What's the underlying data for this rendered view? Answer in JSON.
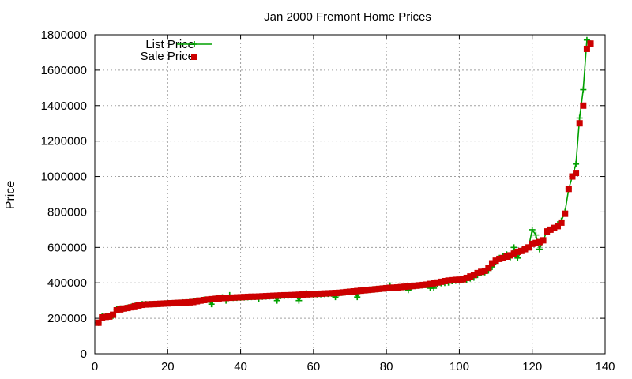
{
  "chart_data": {
    "type": "line",
    "title": "Jan 2000 Fremont Home Prices",
    "xlabel": "",
    "ylabel": "Price",
    "xlim": [
      0,
      140
    ],
    "ylim": [
      0,
      1800000
    ],
    "x_ticks": [
      0,
      20,
      40,
      60,
      80,
      100,
      120,
      140
    ],
    "y_ticks": [
      0,
      200000,
      400000,
      600000,
      800000,
      1000000,
      1200000,
      1400000,
      1600000,
      1800000
    ],
    "grid": true,
    "legend_position": "top-left",
    "series": [
      {
        "name": "List Price",
        "style": "lines with plus markers",
        "color": "#00a000",
        "x": [
          1,
          2,
          3,
          4,
          5,
          6,
          7,
          8,
          9,
          10,
          11,
          12,
          13,
          14,
          15,
          16,
          17,
          18,
          19,
          20,
          21,
          22,
          23,
          24,
          25,
          26,
          27,
          28,
          29,
          30,
          31,
          32,
          33,
          34,
          35,
          36,
          37,
          38,
          39,
          40,
          41,
          42,
          43,
          44,
          45,
          46,
          47,
          48,
          49,
          50,
          51,
          52,
          53,
          54,
          55,
          56,
          57,
          58,
          59,
          60,
          61,
          62,
          63,
          64,
          65,
          66,
          67,
          68,
          69,
          70,
          71,
          72,
          73,
          74,
          75,
          76,
          77,
          78,
          79,
          80,
          81,
          82,
          83,
          84,
          85,
          86,
          87,
          88,
          89,
          90,
          91,
          92,
          93,
          94,
          95,
          96,
          97,
          98,
          99,
          100,
          101,
          102,
          103,
          104,
          105,
          106,
          107,
          108,
          109,
          110,
          111,
          112,
          113,
          114,
          115,
          116,
          117,
          118,
          119,
          120,
          121,
          122,
          123,
          124,
          125,
          126,
          127,
          128,
          129,
          130,
          131,
          132,
          133,
          134,
          135,
          136
        ],
        "values": [
          175000,
          210000,
          210000,
          210000,
          215000,
          250000,
          255000,
          255000,
          260000,
          265000,
          270000,
          275000,
          280000,
          280000,
          280000,
          280000,
          280000,
          282000,
          284000,
          285000,
          285000,
          287000,
          288000,
          290000,
          290000,
          292000,
          294000,
          300000,
          300000,
          305000,
          305000,
          280000,
          310000,
          315000,
          318000,
          300000,
          330000,
          315000,
          316000,
          317000,
          318000,
          319000,
          320000,
          321000,
          310000,
          322000,
          323000,
          324000,
          325000,
          300000,
          326000,
          327000,
          328000,
          329000,
          330000,
          300000,
          331000,
          340000,
          333000,
          334000,
          335000,
          336000,
          337000,
          338000,
          339000,
          320000,
          342000,
          345000,
          348000,
          350000,
          352000,
          320000,
          356000,
          358000,
          360000,
          362000,
          364000,
          366000,
          368000,
          370000,
          385000,
          372000,
          374000,
          376000,
          378000,
          360000,
          380000,
          382000,
          384000,
          386000,
          388000,
          370000,
          370000,
          395000,
          398000,
          400000,
          402000,
          410000,
          412000,
          414000,
          415000,
          418000,
          425000,
          430000,
          445000,
          455000,
          460000,
          470000,
          490000,
          520000,
          540000,
          550000,
          560000,
          545000,
          600000,
          540000,
          580000,
          590000,
          600000,
          700000,
          670000,
          590000,
          640000,
          690000,
          700000,
          710000,
          730000,
          750000,
          800000,
          930000,
          1000000,
          1070000,
          1330000,
          1490000,
          1770000,
          1750000
        ]
      },
      {
        "name": "Sale Price",
        "style": "square markers",
        "color": "#cc0000",
        "x": [
          1,
          2,
          3,
          4,
          5,
          6,
          7,
          8,
          9,
          10,
          11,
          12,
          13,
          14,
          15,
          16,
          17,
          18,
          19,
          20,
          21,
          22,
          23,
          24,
          25,
          26,
          27,
          28,
          29,
          30,
          31,
          32,
          33,
          34,
          35,
          36,
          37,
          38,
          39,
          40,
          41,
          42,
          43,
          44,
          45,
          46,
          47,
          48,
          49,
          50,
          51,
          52,
          53,
          54,
          55,
          56,
          57,
          58,
          59,
          60,
          61,
          62,
          63,
          64,
          65,
          66,
          67,
          68,
          69,
          70,
          71,
          72,
          73,
          74,
          75,
          76,
          77,
          78,
          79,
          80,
          81,
          82,
          83,
          84,
          85,
          86,
          87,
          88,
          89,
          90,
          91,
          92,
          93,
          94,
          95,
          96,
          97,
          98,
          99,
          100,
          101,
          102,
          103,
          104,
          105,
          106,
          107,
          108,
          109,
          110,
          111,
          112,
          113,
          114,
          115,
          116,
          117,
          118,
          119,
          120,
          121,
          122,
          123,
          124,
          125,
          126,
          127,
          128,
          129,
          130,
          131,
          132,
          133,
          134,
          135,
          136
        ],
        "values": [
          175000,
          205000,
          208000,
          210000,
          220000,
          245000,
          250000,
          255000,
          258000,
          262000,
          268000,
          272000,
          276000,
          278000,
          279000,
          280000,
          281000,
          282000,
          283000,
          284000,
          285000,
          286000,
          287000,
          288000,
          289000,
          290000,
          292000,
          296000,
          300000,
          303000,
          306000,
          308000,
          310000,
          312000,
          314000,
          315000,
          316000,
          317000,
          318000,
          319000,
          320000,
          321000,
          322000,
          322000,
          323000,
          324000,
          325000,
          326000,
          327000,
          328000,
          329000,
          330000,
          330000,
          331000,
          332000,
          333000,
          334000,
          335000,
          336000,
          337000,
          338000,
          339000,
          340000,
          341000,
          342000,
          343000,
          344000,
          346000,
          348000,
          350000,
          352000,
          354000,
          356000,
          358000,
          360000,
          362000,
          364000,
          366000,
          368000,
          370000,
          372000,
          373000,
          374000,
          376000,
          378000,
          380000,
          382000,
          384000,
          386000,
          388000,
          390000,
          394000,
          398000,
          402000,
          406000,
          410000,
          413000,
          415000,
          417000,
          418000,
          420000,
          428000,
          436000,
          445000,
          455000,
          462000,
          468000,
          485000,
          510000,
          525000,
          535000,
          540000,
          548000,
          555000,
          565000,
          575000,
          580000,
          590000,
          600000,
          620000,
          625000,
          630000,
          640000,
          690000,
          700000,
          710000,
          720000,
          740000,
          790000,
          930000,
          1000000,
          1020000,
          1300000,
          1400000,
          1720000,
          1750000
        ]
      }
    ]
  }
}
